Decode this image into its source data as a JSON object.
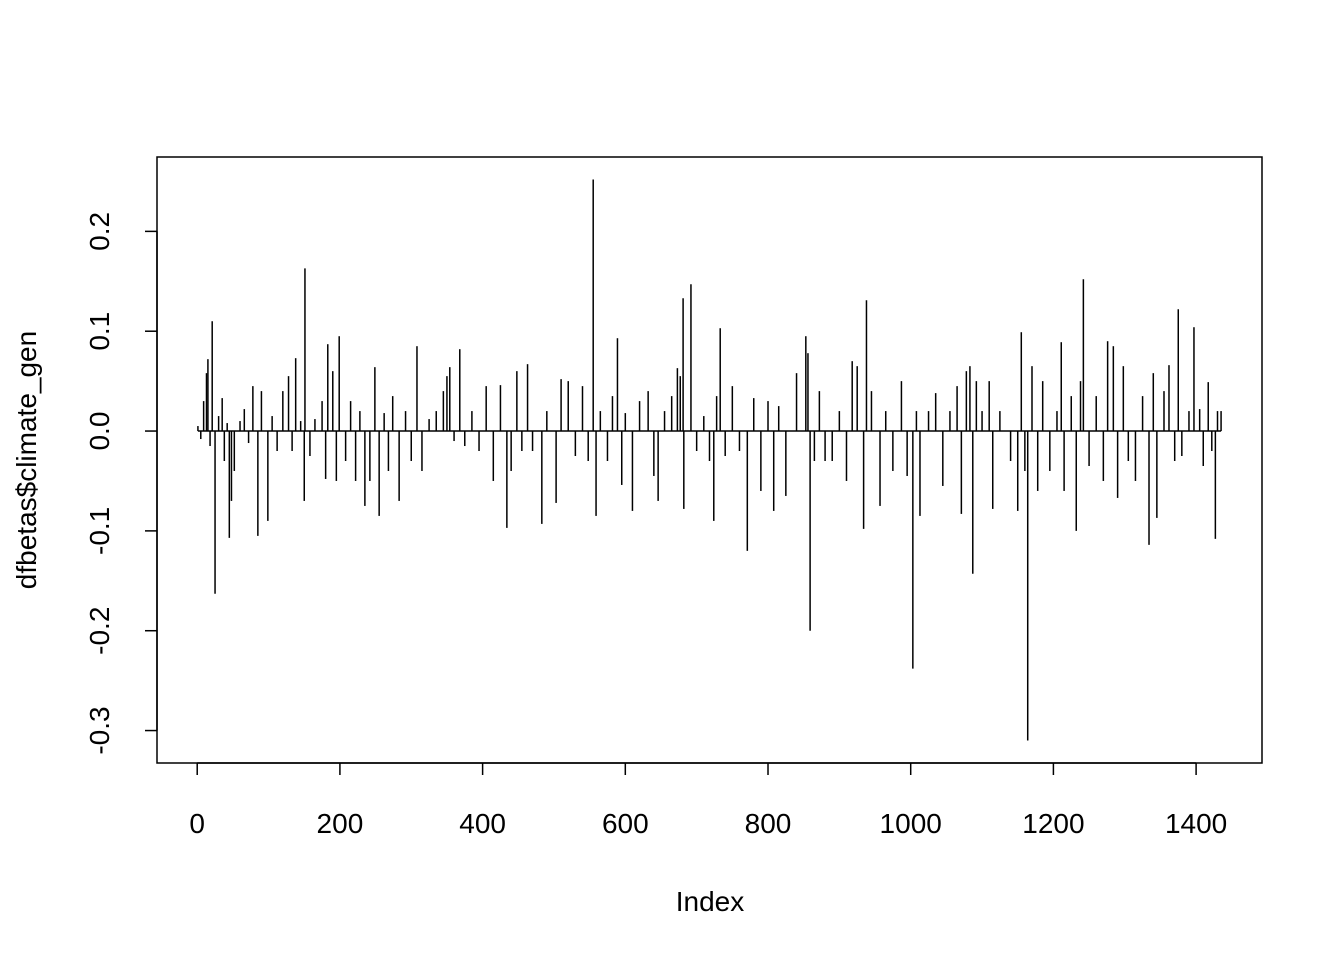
{
  "chart_data": {
    "type": "spike",
    "xlabel": "Index",
    "ylabel": "dfbetas$climate_gen",
    "color": "#000000",
    "xlim": [
      -56.36,
      1492.36
    ],
    "ylim": [
      -0.3325,
      0.2745
    ],
    "xticks": [
      0,
      200,
      400,
      600,
      800,
      1000,
      1200,
      1400
    ],
    "yticks": [
      -0.3,
      -0.2,
      -0.1,
      {
        "value": 0,
        "label": "0.0"
      },
      0.1,
      0.2
    ],
    "x": [
      1,
      5,
      9,
      13,
      15,
      18,
      21,
      25,
      30,
      35,
      38,
      42,
      45,
      48,
      52,
      60,
      66,
      72,
      78,
      85,
      90,
      99,
      105,
      112,
      120,
      128,
      133,
      138,
      145,
      150,
      151,
      158,
      165,
      175,
      180,
      183,
      190,
      195,
      199,
      208,
      215,
      222,
      228,
      235,
      242,
      249,
      255,
      262,
      268,
      274,
      283,
      292,
      300,
      308,
      315,
      325,
      335,
      345,
      350,
      354,
      360,
      368,
      375,
      385,
      395,
      405,
      415,
      425,
      434,
      440,
      448,
      455,
      463,
      470,
      483,
      490,
      503,
      510,
      520,
      530,
      540,
      548,
      555,
      559,
      565,
      575,
      582,
      589,
      595,
      600,
      610,
      620,
      632,
      640,
      646,
      655,
      665,
      673,
      677,
      681,
      682,
      692,
      700,
      710,
      718,
      724,
      728,
      733,
      740,
      750,
      760,
      771,
      780,
      790,
      800,
      808,
      815,
      825,
      840,
      853,
      856,
      859,
      865,
      872,
      880,
      890,
      900,
      910,
      918,
      925,
      934,
      938,
      945,
      957,
      965,
      975,
      987,
      995,
      1003,
      1008,
      1013,
      1025,
      1035,
      1045,
      1055,
      1065,
      1071,
      1078,
      1083,
      1087,
      1092,
      1100,
      1110,
      1115,
      1125,
      1140,
      1150,
      1155,
      1160,
      1164,
      1170,
      1178,
      1185,
      1195,
      1205,
      1211,
      1215,
      1225,
      1232,
      1238,
      1242,
      1250,
      1260,
      1270,
      1276,
      1284,
      1290,
      1298,
      1305,
      1315,
      1325,
      1334,
      1340,
      1345,
      1355,
      1362,
      1370,
      1375,
      1380,
      1390,
      1397,
      1405,
      1410,
      1417,
      1422,
      1427,
      1430,
      1435
    ],
    "values": [
      0.005,
      -0.008,
      0.03,
      0.058,
      0.072,
      -0.015,
      0.11,
      -0.163,
      0.015,
      0.033,
      -0.03,
      0.008,
      -0.107,
      -0.07,
      -0.04,
      0.01,
      0.022,
      -0.012,
      0.045,
      -0.105,
      0.04,
      -0.09,
      0.015,
      -0.02,
      0.04,
      0.055,
      -0.02,
      0.073,
      0.01,
      -0.07,
      0.163,
      -0.025,
      0.012,
      0.03,
      -0.048,
      0.087,
      0.06,
      -0.05,
      0.095,
      -0.03,
      0.03,
      -0.05,
      0.02,
      -0.075,
      -0.05,
      0.064,
      -0.085,
      0.018,
      -0.04,
      0.035,
      -0.07,
      0.02,
      -0.03,
      0.085,
      -0.04,
      0.012,
      0.02,
      0.04,
      0.055,
      0.064,
      -0.01,
      0.082,
      -0.015,
      0.02,
      -0.02,
      0.045,
      -0.05,
      0.046,
      -0.097,
      -0.04,
      0.06,
      -0.02,
      0.067,
      -0.02,
      -0.093,
      0.02,
      -0.072,
      0.052,
      0.05,
      -0.025,
      0.045,
      -0.03,
      0.252,
      -0.085,
      0.02,
      -0.03,
      0.035,
      0.093,
      -0.054,
      0.018,
      -0.08,
      0.03,
      0.04,
      -0.045,
      -0.07,
      0.02,
      0.035,
      0.063,
      0.055,
      0.133,
      -0.078,
      0.147,
      -0.02,
      0.015,
      -0.03,
      -0.09,
      0.035,
      0.103,
      -0.025,
      0.045,
      -0.02,
      -0.12,
      0.033,
      -0.06,
      0.03,
      -0.08,
      0.025,
      -0.065,
      0.058,
      0.095,
      0.078,
      -0.2,
      -0.03,
      0.04,
      -0.03,
      -0.03,
      0.02,
      -0.05,
      0.07,
      0.065,
      -0.098,
      0.131,
      0.04,
      -0.075,
      0.02,
      -0.04,
      0.05,
      -0.045,
      -0.238,
      0.02,
      -0.085,
      0.02,
      0.038,
      -0.055,
      0.02,
      0.045,
      -0.083,
      0.06,
      0.065,
      -0.143,
      0.05,
      0.02,
      0.05,
      -0.078,
      0.02,
      -0.03,
      -0.08,
      0.099,
      -0.04,
      -0.31,
      0.065,
      -0.06,
      0.05,
      -0.04,
      0.02,
      0.089,
      -0.06,
      0.035,
      -0.1,
      0.05,
      0.152,
      -0.035,
      0.035,
      -0.05,
      0.09,
      0.085,
      -0.067,
      0.065,
      -0.03,
      -0.05,
      0.035,
      -0.114,
      0.058,
      -0.087,
      0.04,
      0.066,
      -0.03,
      0.122,
      -0.025,
      0.02,
      0.104,
      0.022,
      -0.035,
      0.049,
      -0.02,
      -0.108,
      0.02,
      0.02
    ]
  }
}
